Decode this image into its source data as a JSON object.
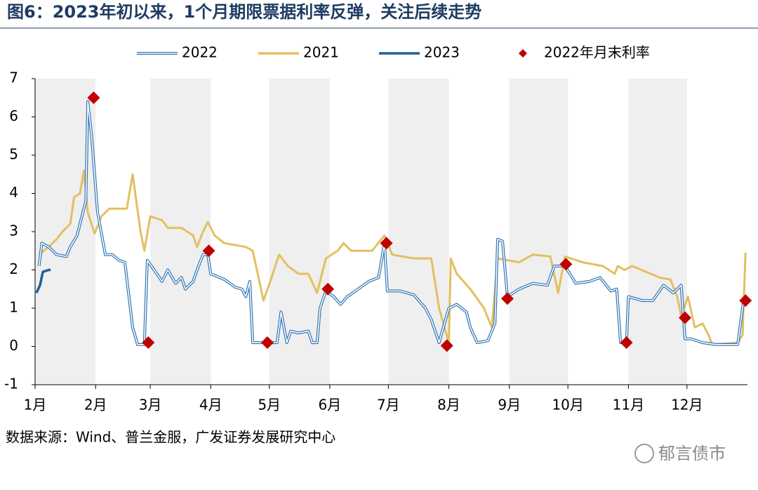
{
  "chart_data": {
    "type": "line",
    "title": "图6：2023年初以来，1个月期限票据利率反弹，关注后续走势",
    "source": "数据来源：Wind、普兰金服，广发证券发展研究中心",
    "xlim": [
      0,
      365
    ],
    "xticks": [
      {
        "value": 0,
        "label": "1月"
      },
      {
        "value": 31,
        "label": "2月"
      },
      {
        "value": 59,
        "label": "3月"
      },
      {
        "value": 90,
        "label": "4月"
      },
      {
        "value": 120,
        "label": "5月"
      },
      {
        "value": 151,
        "label": "6月"
      },
      {
        "value": 181,
        "label": "7月"
      },
      {
        "value": 212,
        "label": "8月"
      },
      {
        "value": 243,
        "label": "9月"
      },
      {
        "value": 273,
        "label": "10月"
      },
      {
        "value": 304,
        "label": "11月"
      },
      {
        "value": 334,
        "label": "12月"
      }
    ],
    "ylim": [
      -1,
      7
    ],
    "yticks": [
      -1,
      0,
      1,
      2,
      3,
      4,
      5,
      6,
      7
    ],
    "shade_alternate_months": true,
    "legend": "top",
    "series": [
      {
        "name": "2022",
        "color": "#2e75b6",
        "style": "double",
        "x": [
          2,
          3.5,
          7,
          11,
          16,
          18,
          21.5,
          24.5,
          26,
          27,
          29,
          32,
          36,
          39.5,
          43,
          46,
          50,
          52.5,
          56,
          57.5,
          61,
          65,
          68,
          72,
          75,
          77,
          81,
          83,
          86,
          88.5,
          90,
          97,
          102.5,
          106,
          108,
          110,
          111.5,
          118,
          124,
          126,
          129,
          131,
          135,
          140,
          142,
          144.5,
          146,
          149,
          153,
          156.5,
          160,
          165.5,
          171,
          176,
          179,
          180.5,
          187,
          194,
          200,
          203,
          207,
          212,
          216,
          221,
          223,
          226.5,
          232,
          235.6,
          237,
          239.5,
          242,
          248,
          255,
          262.5,
          266,
          271.5,
          277,
          284,
          289.5,
          295,
          298,
          300,
          303,
          304,
          311,
          316.5,
          322,
          327,
          331,
          333,
          336,
          342,
          349,
          360,
          363
        ],
        "values": [
          2.1,
          2.7,
          2.6,
          2.4,
          2.35,
          2.6,
          2.9,
          3.5,
          3.8,
          6.4,
          5.5,
          3.5,
          2.4,
          2.4,
          2.25,
          2.2,
          0.5,
          0.05,
          0.05,
          2.25,
          2.0,
          1.7,
          2.0,
          1.65,
          1.8,
          1.5,
          1.7,
          2.0,
          2.4,
          2.4,
          1.9,
          1.75,
          1.55,
          1.5,
          1.3,
          1.7,
          0.1,
          0.1,
          0.1,
          0.9,
          0.1,
          0.4,
          0.35,
          0.4,
          0.1,
          0.1,
          1.0,
          1.45,
          1.3,
          1.1,
          1.3,
          1.5,
          1.7,
          1.8,
          2.7,
          1.45,
          1.45,
          1.35,
          1.0,
          0.7,
          0.1,
          1.0,
          1.1,
          0.9,
          0.5,
          0.1,
          0.15,
          0.6,
          2.8,
          2.75,
          1.3,
          1.5,
          1.65,
          1.6,
          2.1,
          2.1,
          1.65,
          1.7,
          1.8,
          1.45,
          1.5,
          0.1,
          0.1,
          1.3,
          1.2,
          1.2,
          1.6,
          1.4,
          1.6,
          0.2,
          0.2,
          0.1,
          0.05,
          0.05,
          1.2
        ]
      },
      {
        "name": "2021",
        "color": "#e2c060",
        "style": "solid",
        "x": [
          2,
          7,
          11,
          14,
          18,
          20,
          23,
          25,
          27,
          30.5,
          34,
          38,
          47,
          50,
          54,
          56,
          59,
          65,
          68,
          75,
          81,
          83,
          86,
          88.5,
          92,
          97,
          108,
          111.5,
          117,
          120.5,
          125,
          129.5,
          135,
          140,
          144.5,
          149,
          155,
          158,
          162,
          172.6,
          179,
          183,
          194,
          203,
          207,
          212,
          213,
          216,
          223,
          230,
          234,
          237,
          248,
          255,
          264,
          268,
          271.5,
          280.5,
          291,
          297,
          298.5,
          302,
          306,
          313,
          320,
          325.5,
          329,
          331,
          334.5,
          338,
          342,
          345,
          347,
          360,
          362.5,
          364
        ],
        "values": [
          2.4,
          2.6,
          2.8,
          3.0,
          3.2,
          3.9,
          4.0,
          4.6,
          3.5,
          2.95,
          3.4,
          3.6,
          3.6,
          4.5,
          3.0,
          2.5,
          3.4,
          3.3,
          3.1,
          3.1,
          2.9,
          2.6,
          3.0,
          3.25,
          2.9,
          2.7,
          2.6,
          2.5,
          1.2,
          1.7,
          2.4,
          2.1,
          1.9,
          1.9,
          1.4,
          2.3,
          2.5,
          2.7,
          2.5,
          2.5,
          2.9,
          2.4,
          2.3,
          2.3,
          1.0,
          0.1,
          2.3,
          1.9,
          1.5,
          1.0,
          0.5,
          2.3,
          2.2,
          2.4,
          2.35,
          1.4,
          2.35,
          2.2,
          2.1,
          1.9,
          2.1,
          2.0,
          2.1,
          1.95,
          1.8,
          1.75,
          1.3,
          0.8,
          1.3,
          0.5,
          0.6,
          0.3,
          0.05,
          0.1,
          0.3,
          2.45
        ]
      },
      {
        "name": "2023",
        "color": "#1f5f9a",
        "style": "thick",
        "x": [
          0.7,
          2.5,
          4,
          7,
          8
        ],
        "values": [
          1.4,
          1.6,
          1.95,
          2.0,
          2.0
        ]
      },
      {
        "name": "2022年月末利率",
        "color": "#c00000",
        "style": "diamond",
        "x": [
          30,
          58,
          89,
          119,
          150,
          180,
          211,
          242,
          272,
          303,
          333,
          364
        ],
        "values": [
          6.5,
          0.1,
          2.5,
          0.1,
          1.5,
          2.7,
          0.02,
          1.25,
          2.15,
          0.1,
          0.75,
          1.2
        ]
      }
    ]
  },
  "watermark": "郁言债市"
}
